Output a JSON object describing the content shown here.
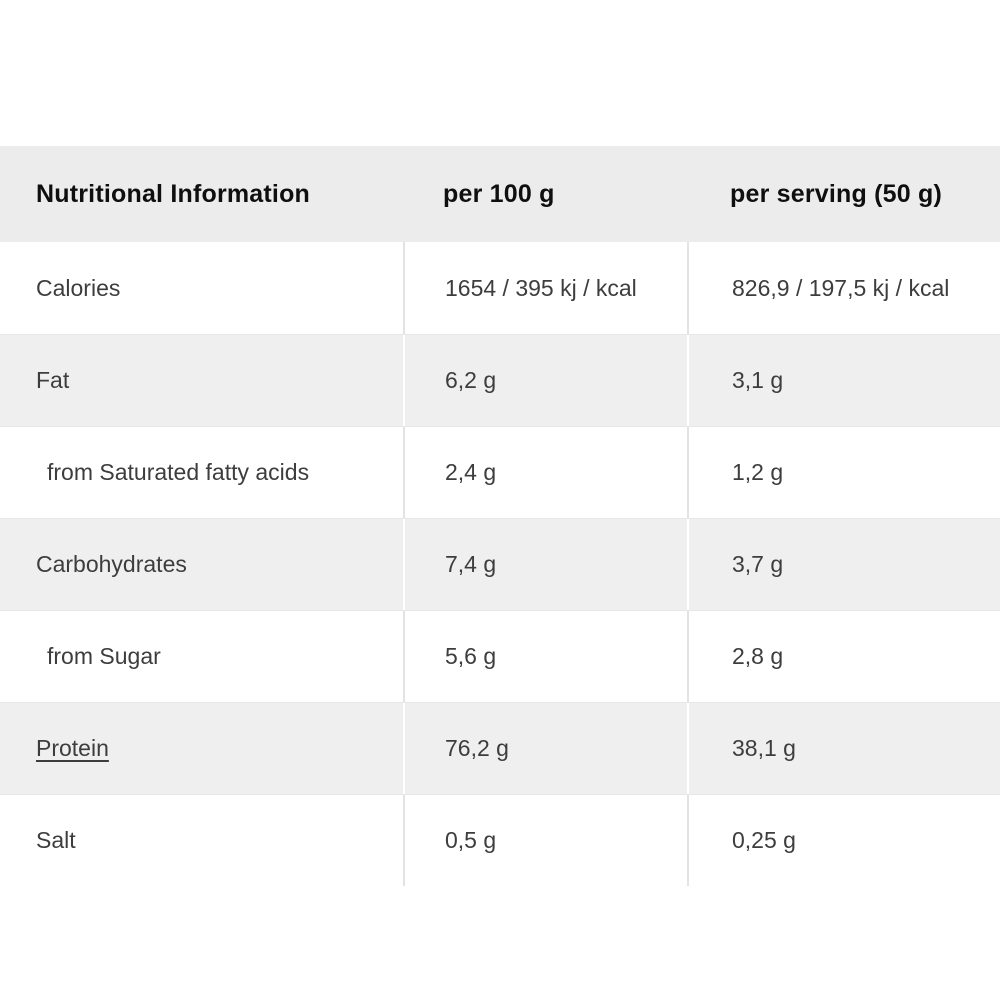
{
  "table": {
    "headers": {
      "label": "Nutritional Information",
      "per100": "per 100 g",
      "perServing": "per serving (50 g)"
    },
    "rows": [
      {
        "label": "Calories",
        "per100": "1654 / 395 kj / kcal",
        "perServing": "826,9 / 197,5 kj / kcal"
      },
      {
        "label": "Fat",
        "per100": "6,2 g",
        "perServing": "3,1 g"
      },
      {
        "label": "from Saturated fatty acids",
        "per100": "2,4 g",
        "perServing": "1,2 g"
      },
      {
        "label": "Carbohydrates",
        "per100": "7,4 g",
        "perServing": "3,7 g"
      },
      {
        "label": "from Sugar",
        "per100": "5,6 g",
        "perServing": "2,8 g"
      },
      {
        "label": "Protein",
        "per100": "76,2 g",
        "perServing": "38,1 g"
      },
      {
        "label": "Salt",
        "per100": "0,5 g",
        "perServing": "0,25 g"
      }
    ],
    "colors": {
      "header_bg": "#ececec",
      "alt_row_bg": "#efefef",
      "row_bg": "#ffffff",
      "header_text": "#0f0f0f",
      "body_text": "#3d3d3d"
    }
  }
}
